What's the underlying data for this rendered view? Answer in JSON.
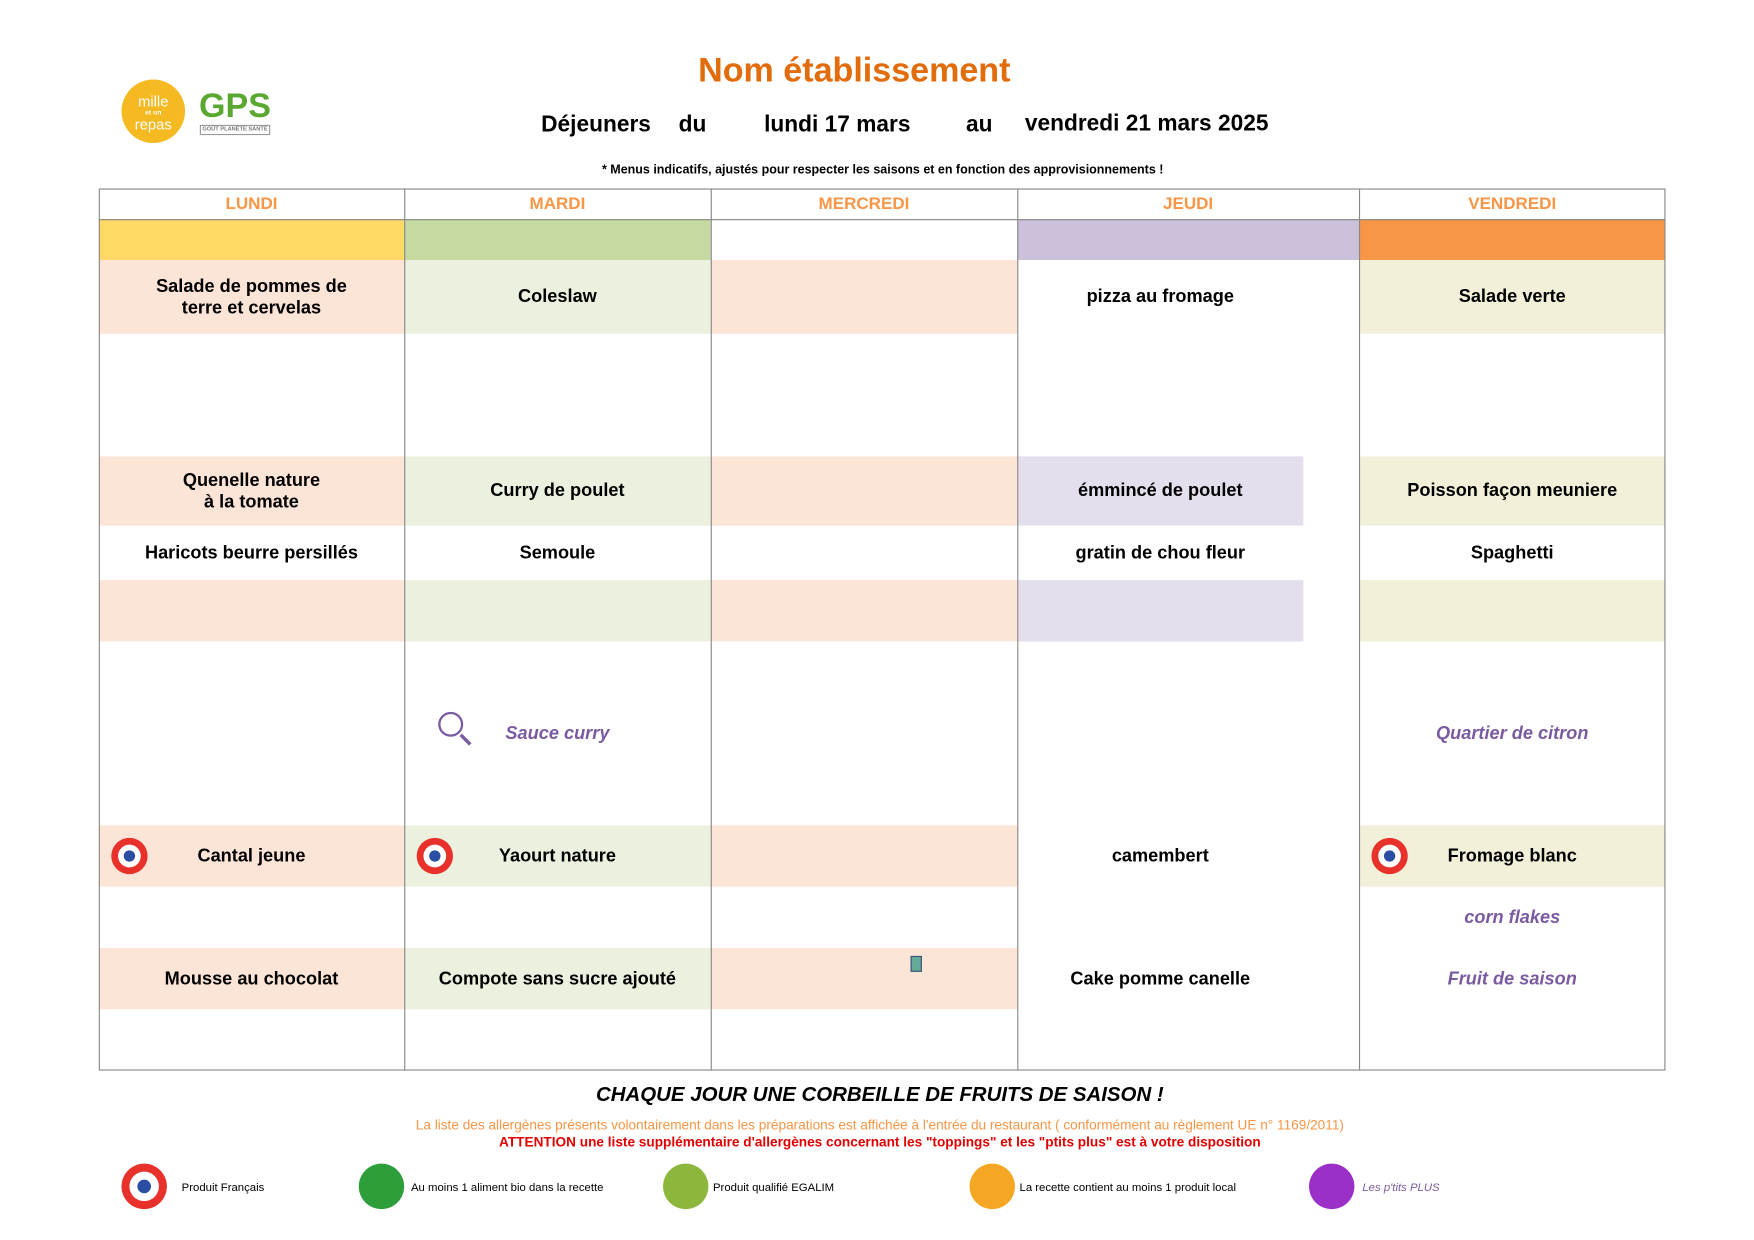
{
  "header": {
    "title": "Nom établissement",
    "lunch": "Déjeuners",
    "from": "du",
    "start": "lundi 17 mars",
    "to": "au",
    "end": "vendredi 21 mars 2025",
    "note": "* Menus indicatifs, ajustés pour respecter les saisons et en fonction des approvisionnements !"
  },
  "logo": {
    "top": "mille",
    "middle": "et un",
    "bottom": "repas",
    "gps": "GPS",
    "gps_sub": "GOÛT PLANÈTE SANTÉ"
  },
  "days": [
    "LUNDI",
    "MARDI",
    "MERCREDI",
    "JEUDI",
    "VENDREDI"
  ],
  "rows": [
    {
      "cells": [
        "Salade de pommes de\nterre et cervelas",
        "Coleslaw",
        null,
        "pizza au fromage",
        "Salade verte"
      ]
    },
    {
      "cells": [
        "Quenelle nature\nà la tomate",
        "Curry de poulet",
        null,
        "émmincé de poulet",
        "Poisson façon meuniere"
      ]
    },
    {
      "cells": [
        "Haricots beurre persillés",
        "Semoule",
        null,
        "gratin de chou fleur",
        "Spaghetti"
      ]
    },
    {
      "cells": [
        null,
        "Sauce curry",
        null,
        null,
        "Quartier de citron"
      ]
    },
    {
      "cells": [
        "Cantal jeune",
        "Yaourt nature",
        null,
        "camembert",
        "Fromage blanc"
      ]
    },
    {
      "cells": [
        null,
        null,
        null,
        null,
        "corn flakes"
      ]
    },
    {
      "cells": [
        "Mousse au chocolat",
        "Compote sans sucre ajouté",
        null,
        "Cake pomme canelle",
        "Fruit de saison"
      ]
    }
  ],
  "footer": {
    "fruits": "CHAQUE JOUR UNE CORBEILLE DE FRUITS DE SAISON !",
    "allergens": "La liste des allergènes présents volontairement dans les préparations est affichée à l'entrée du restaurant ( conformément au règlement UE n° 1169/2011)",
    "attention": "ATTENTION une liste supplémentaire d'allergènes concernant les \"toppings\" et les \"ptits plus\" est à votre disposition"
  },
  "legend": [
    "Produit Français",
    "Au moins 1 aliment bio dans la recette",
    "Produit qualifié EGALIM",
    "La recette contient au moins 1 produit local",
    "Les p'tits PLUS"
  ]
}
